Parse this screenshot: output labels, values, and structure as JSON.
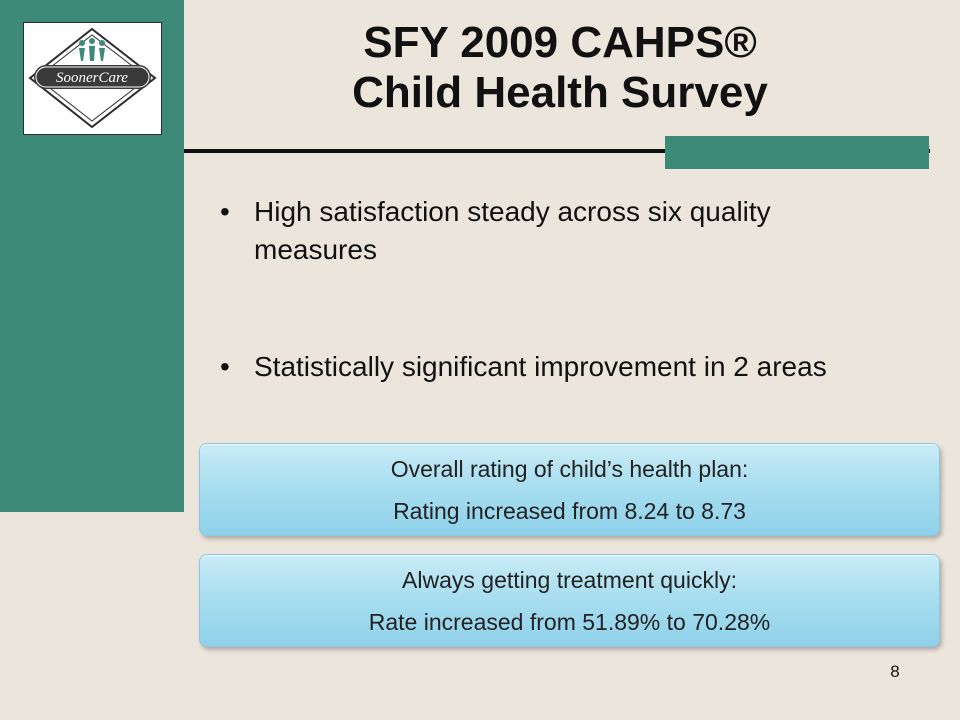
{
  "logo": {
    "wordmark": "SoonerCare"
  },
  "title": {
    "line1": "SFY 2009 CAHPS®",
    "line2": "Child Health Survey"
  },
  "bullets": [
    {
      "text": "High satisfaction steady across six quality measures"
    },
    {
      "text": "Statistically significant improvement in 2 areas"
    }
  ],
  "callouts": [
    {
      "heading": "Overall rating of child’s health plan:",
      "detail": "Rating increased from 8.24 to 8.73"
    },
    {
      "heading": "Always getting treatment quickly:",
      "detail": "Rate increased from 51.89% to 70.28%"
    }
  ],
  "page_number": "8",
  "colors": {
    "accent": "#3d8a79",
    "background": "#ece5dc",
    "callout": "#a9def0"
  }
}
